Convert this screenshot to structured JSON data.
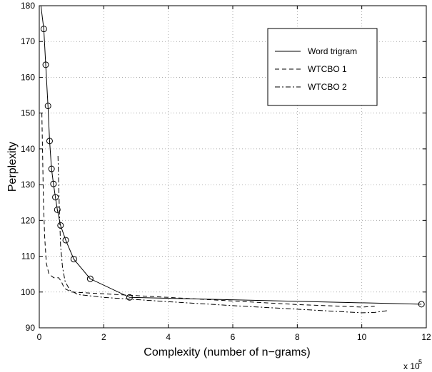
{
  "chart_data": {
    "type": "line",
    "xlabel": "Complexity (number of n−grams)",
    "ylabel": "Perplexity",
    "x_multiplier_label": "x 10",
    "x_multiplier_exponent": "5",
    "xlim": [
      0,
      12
    ],
    "ylim": [
      90,
      180
    ],
    "xticks": [
      "0",
      "2",
      "4",
      "6",
      "8",
      "10",
      "12"
    ],
    "yticks": [
      "90",
      "100",
      "110",
      "120",
      "130",
      "140",
      "150",
      "160",
      "170",
      "180"
    ],
    "grid": true,
    "legend_position": "top-right",
    "series": [
      {
        "name": "Word trigram",
        "style": "solid",
        "marker": "circle",
        "color": "#000000",
        "points": [
          [
            0.05,
            180
          ],
          [
            0.14,
            173.5
          ],
          [
            0.2,
            163.5
          ],
          [
            0.27,
            152
          ],
          [
            0.32,
            142.2
          ],
          [
            0.38,
            134.4
          ],
          [
            0.44,
            130.2
          ],
          [
            0.5,
            126.5
          ],
          [
            0.56,
            123
          ],
          [
            0.66,
            118.6
          ],
          [
            0.82,
            114.5
          ],
          [
            1.07,
            109.2
          ],
          [
            1.58,
            103.7
          ],
          [
            2.8,
            98.5
          ],
          [
            11.85,
            96.6
          ]
        ],
        "marker_points": [
          [
            0.14,
            173.5
          ],
          [
            0.2,
            163.5
          ],
          [
            0.27,
            152
          ],
          [
            0.32,
            142.2
          ],
          [
            0.38,
            134.4
          ],
          [
            0.44,
            130.2
          ],
          [
            0.5,
            126.5
          ],
          [
            0.56,
            123
          ],
          [
            0.66,
            118.6
          ],
          [
            0.82,
            114.5
          ],
          [
            1.07,
            109.2
          ],
          [
            1.58,
            103.7
          ],
          [
            2.8,
            98.5
          ],
          [
            11.85,
            96.6
          ]
        ]
      },
      {
        "name": "WTCBO 1",
        "style": "dashed",
        "marker": "none",
        "color": "#000000",
        "points": [
          [
            0.08,
            150
          ],
          [
            0.1,
            140
          ],
          [
            0.13,
            125
          ],
          [
            0.17,
            115
          ],
          [
            0.22,
            108
          ],
          [
            0.3,
            105
          ],
          [
            0.45,
            104
          ],
          [
            0.6,
            104
          ],
          [
            0.68,
            103
          ],
          [
            0.78,
            101
          ],
          [
            1.0,
            100
          ],
          [
            2.0,
            99.5
          ],
          [
            4.0,
            98.5
          ],
          [
            6.0,
            97.5
          ],
          [
            8.0,
            96.5
          ],
          [
            10.0,
            95.8
          ],
          [
            10.4,
            96
          ]
        ]
      },
      {
        "name": "WTCBO 2",
        "style": "dashdot",
        "marker": "none",
        "color": "#000000",
        "points": [
          [
            0.58,
            138
          ],
          [
            0.62,
            124
          ],
          [
            0.66,
            113
          ],
          [
            0.72,
            107
          ],
          [
            0.8,
            103
          ],
          [
            0.95,
            100.5
          ],
          [
            1.2,
            99.3
          ],
          [
            2.0,
            98.5
          ],
          [
            4.0,
            97.3
          ],
          [
            6.0,
            96.2
          ],
          [
            8.0,
            95.2
          ],
          [
            10.0,
            94.2
          ],
          [
            10.4,
            94.3
          ],
          [
            10.8,
            94.8
          ]
        ]
      }
    ]
  }
}
